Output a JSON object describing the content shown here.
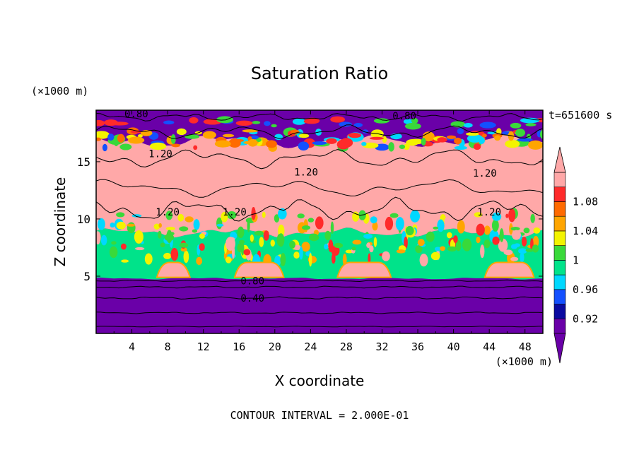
{
  "chart_data": {
    "type": "heatmap",
    "title": "Saturation Ratio",
    "xlabel": "X coordinate",
    "ylabel": "Z coordinate",
    "x_unit": "(×1000 m)",
    "y_unit": "(×1000 m)",
    "xlim": [
      0,
      50
    ],
    "ylim": [
      0,
      19.5
    ],
    "x_ticks": [
      4,
      8,
      12,
      16,
      20,
      24,
      28,
      32,
      36,
      40,
      44,
      48
    ],
    "y_ticks": [
      5,
      10,
      15
    ],
    "time_label": "t=651600 s",
    "footer": "CONTOUR INTERVAL = 2.000E-01",
    "colorbar": {
      "tick_labels": [
        "1.08",
        "1.04",
        "1",
        "0.96",
        "0.92"
      ],
      "levels": [
        0.9,
        0.92,
        0.94,
        0.96,
        0.98,
        1.0,
        1.02,
        1.04,
        1.06,
        1.08,
        1.1
      ],
      "colors": [
        "#6a00a8",
        "#0a0aa0",
        "#1450ff",
        "#00d8ff",
        "#00e38a",
        "#39d93a",
        "#f3f300",
        "#ffa500",
        "#ff6a00",
        "#ff2a2a",
        "#ffa8a8"
      ],
      "under_color": "#6a00a8",
      "over_color": "#ffa8a8"
    },
    "contour_labels": [
      "0.80",
      "0.80",
      "1.20",
      "1.20",
      "1.20",
      "1.20",
      "1.20",
      "1.20",
      "0.80",
      "0.40"
    ],
    "layers": [
      {
        "z_range": [
          0,
          4.8
        ],
        "value_desc": "< 0.90"
      },
      {
        "z_range": [
          4.8,
          9
        ],
        "value_desc": "0.96-1.00"
      },
      {
        "z_range": [
          9,
          17
        ],
        "value_desc": "> 1.10"
      },
      {
        "z_range": [
          17,
          19.5
        ],
        "value_desc": "< 0.90"
      }
    ]
  }
}
